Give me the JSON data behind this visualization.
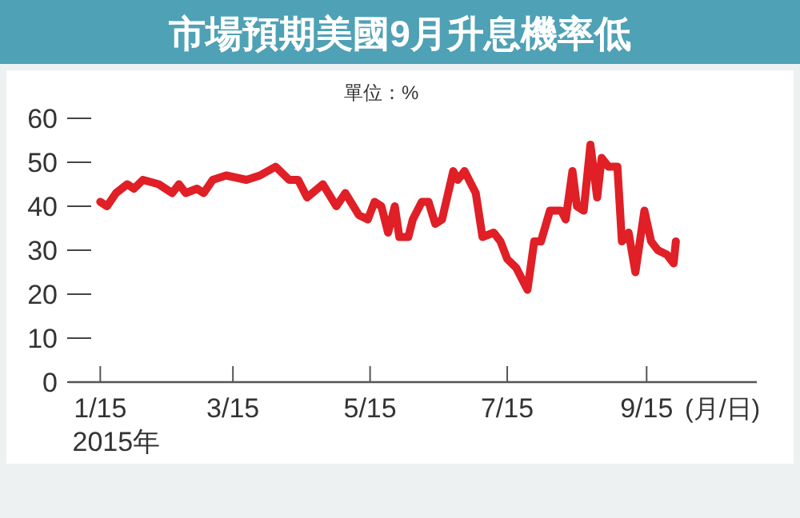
{
  "chart_data": {
    "type": "line",
    "title": "市場預期美國9月升息機率低",
    "xlabel": "(月/日)",
    "ylabel": "單位：%",
    "x": [
      "2015-01-15",
      "2015-01-18",
      "2015-01-22",
      "2015-01-27",
      "2015-01-30",
      "2015-02-03",
      "2015-02-10",
      "2015-02-16",
      "2015-02-19",
      "2015-02-22",
      "2015-02-27",
      "2015-03-02",
      "2015-03-06",
      "2015-03-12",
      "2015-03-21",
      "2015-03-27",
      "2015-04-03",
      "2015-04-09",
      "2015-04-13",
      "2015-04-17",
      "2015-04-24",
      "2015-04-30",
      "2015-05-04",
      "2015-05-10",
      "2015-05-14",
      "2015-05-17",
      "2015-05-20",
      "2015-05-23",
      "2015-05-26",
      "2015-05-28",
      "2015-06-01",
      "2015-06-03",
      "2015-06-07",
      "2015-06-10",
      "2015-06-13",
      "2015-06-16",
      "2015-06-21",
      "2015-06-23",
      "2015-06-26",
      "2015-07-01",
      "2015-07-04",
      "2015-07-09",
      "2015-07-12",
      "2015-07-15",
      "2015-07-19",
      "2015-07-24",
      "2015-07-27",
      "2015-07-30",
      "2015-08-03",
      "2015-08-08",
      "2015-08-10",
      "2015-08-13",
      "2015-08-15",
      "2015-08-18",
      "2015-08-21",
      "2015-08-24",
      "2015-08-26",
      "2015-08-29",
      "2015-09-02",
      "2015-09-04",
      "2015-09-07",
      "2015-09-10",
      "2015-09-14",
      "2015-09-17",
      "2015-09-20",
      "2015-09-24",
      "2015-09-27",
      "2015-09-28"
    ],
    "series": [
      {
        "color": "#e01f26",
        "values": [
          41,
          40,
          43,
          45,
          44,
          46,
          45,
          43,
          45,
          43,
          44,
          43,
          46,
          47,
          46,
          47,
          49,
          46,
          46,
          42,
          45,
          40,
          43,
          38,
          37,
          41,
          40,
          34,
          40,
          33,
          33,
          37,
          41,
          41,
          36,
          37,
          48,
          46,
          48,
          43,
          33,
          34,
          32,
          28,
          26,
          21,
          32,
          32,
          39,
          39,
          37,
          48,
          40,
          39,
          54,
          42,
          51,
          49,
          49,
          32,
          34,
          25,
          39,
          32,
          30,
          29,
          27,
          32
        ]
      }
    ],
    "xlim": [
      "2015-01-01",
      "2015-11-03"
    ],
    "xticks": [
      {
        "value": "2015-01-15",
        "label": "1/15\n2015年"
      },
      {
        "value": "2015-03-15",
        "label": "3/15"
      },
      {
        "value": "2015-05-15",
        "label": "5/15"
      },
      {
        "value": "2015-07-15",
        "label": "7/15"
      },
      {
        "value": "2015-09-15",
        "label": "9/15"
      }
    ],
    "ylim": [
      0,
      60
    ],
    "yticks": [
      0,
      10,
      20,
      30,
      40,
      50,
      60
    ],
    "grid": false,
    "marker": "none",
    "line_style": "solid"
  }
}
